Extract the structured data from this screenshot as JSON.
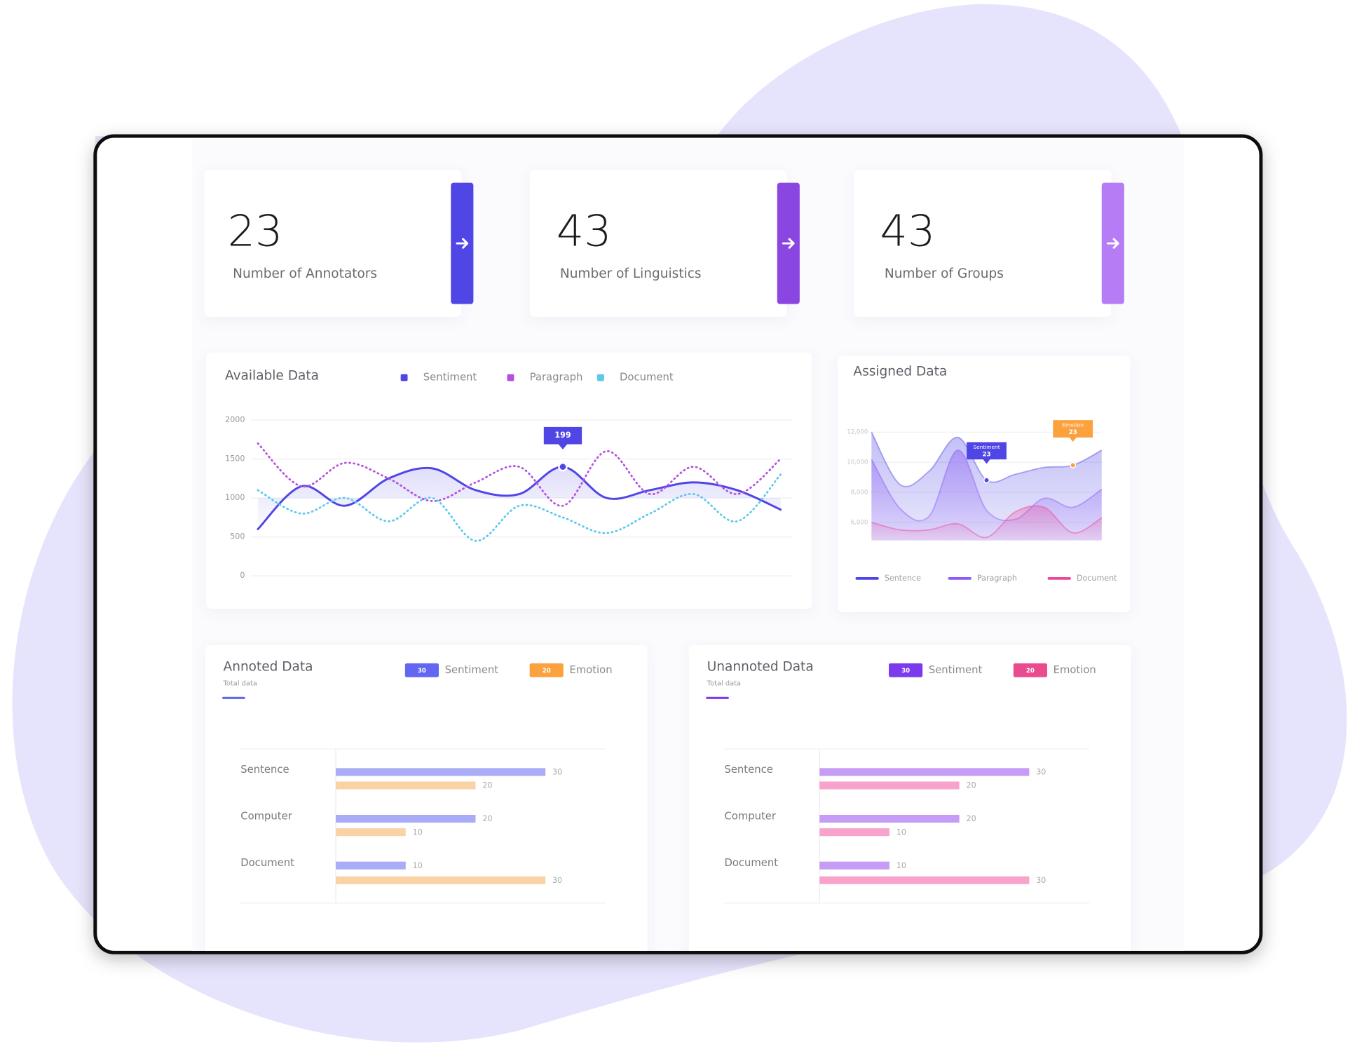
{
  "stat_cards": [
    {
      "value": 23,
      "label": "Number of Annotators"
    },
    {
      "value": 43,
      "label": "Number of Linguistics"
    },
    {
      "value": 43,
      "label": "Number of Groups"
    }
  ],
  "chart_data": [
    {
      "type": "line",
      "title": "Available Data",
      "categories": [
        null,
        null,
        null,
        null,
        null,
        null,
        null,
        null,
        null,
        null,
        null,
        null,
        null
      ],
      "ylim": [
        0,
        2000
      ],
      "yticks": [
        0,
        500,
        1000,
        1500,
        2000
      ],
      "grid": true,
      "series": [
        {
          "name": "Sentiment",
          "color": "#4f46e5",
          "style": "solid",
          "values": [
            600,
            1150,
            900,
            1250,
            1380,
            1100,
            1050,
            1400,
            1000,
            1100,
            1200,
            1100,
            850
          ]
        },
        {
          "name": "Paragraph",
          "color": "#b450e0",
          "style": "dotted",
          "values": [
            1700,
            1150,
            1450,
            1250,
            960,
            1200,
            1400,
            900,
            1600,
            1050,
            1400,
            1050,
            1500
          ]
        },
        {
          "name": "Document",
          "color": "#5cc8ec",
          "style": "dotted",
          "values": [
            1100,
            800,
            1000,
            700,
            1000,
            450,
            900,
            750,
            550,
            800,
            1050,
            700,
            1300
          ]
        }
      ],
      "annotations": [
        {
          "value": 199
        }
      ]
    },
    {
      "type": "area",
      "title": "Assigned Data",
      "categories": [
        null,
        null,
        null,
        null,
        null,
        null,
        null,
        null,
        null
      ],
      "ylim": [
        4800,
        12200
      ],
      "yticks": [
        {
          "value": 6000,
          "label": "6,000"
        },
        {
          "value": 8000,
          "label": "8,000"
        },
        {
          "value": 10000,
          "label": "10,000"
        },
        {
          "value": 12000,
          "label": "12,000"
        }
      ],
      "grid": true,
      "series": [
        {
          "name": "Sentence",
          "color": "#4f46e5",
          "values": [
            12000,
            8500,
            9400,
            11650,
            8800,
            9200,
            9650,
            9800,
            10800
          ]
        },
        {
          "name": "Paragraph",
          "color": "#8b5cf6",
          "values": [
            10200,
            6900,
            6400,
            10800,
            6800,
            6200,
            7600,
            7000,
            8200
          ]
        },
        {
          "name": "Document",
          "color": "#ec4899",
          "values": [
            6000,
            5500,
            5500,
            5900,
            5000,
            6700,
            7000,
            5300,
            6300
          ]
        }
      ],
      "annotations": [
        {
          "name": "Sentiment",
          "value": 23
        },
        {
          "name": "Emotion",
          "value": 23
        }
      ]
    },
    {
      "type": "hbar",
      "title": "Annoted Data",
      "subtitle": "Total data",
      "color": "#6366f1",
      "categories": [
        "Sentence",
        "Computer",
        "Document"
      ],
      "xlim": [
        0,
        40
      ],
      "series": [
        {
          "name": "Sentiment",
          "badge": 30,
          "badge_color": "#6366f1",
          "color": "#a9acf7",
          "values": [
            30,
            20,
            10
          ]
        },
        {
          "name": "Emotion",
          "badge": 20,
          "badge_color": "#fba23f",
          "color": "#f9d2a6",
          "values": [
            20,
            10,
            30
          ]
        }
      ]
    },
    {
      "type": "hbar",
      "title": "Unannoted Data",
      "subtitle": "Total data",
      "color": "#7c3aed",
      "categories": [
        "Sentence",
        "Computer",
        "Document"
      ],
      "xlim": [
        0,
        40
      ],
      "series": [
        {
          "name": "Sentiment",
          "badge": 30,
          "badge_color": "#7c3aed",
          "color": "#c59cf6",
          "values": [
            30,
            20,
            10
          ]
        },
        {
          "name": "Emotion",
          "badge": 20,
          "badge_color": "#ea4a8e",
          "color": "#f8a3cc",
          "values": [
            20,
            10,
            30
          ]
        }
      ]
    }
  ]
}
